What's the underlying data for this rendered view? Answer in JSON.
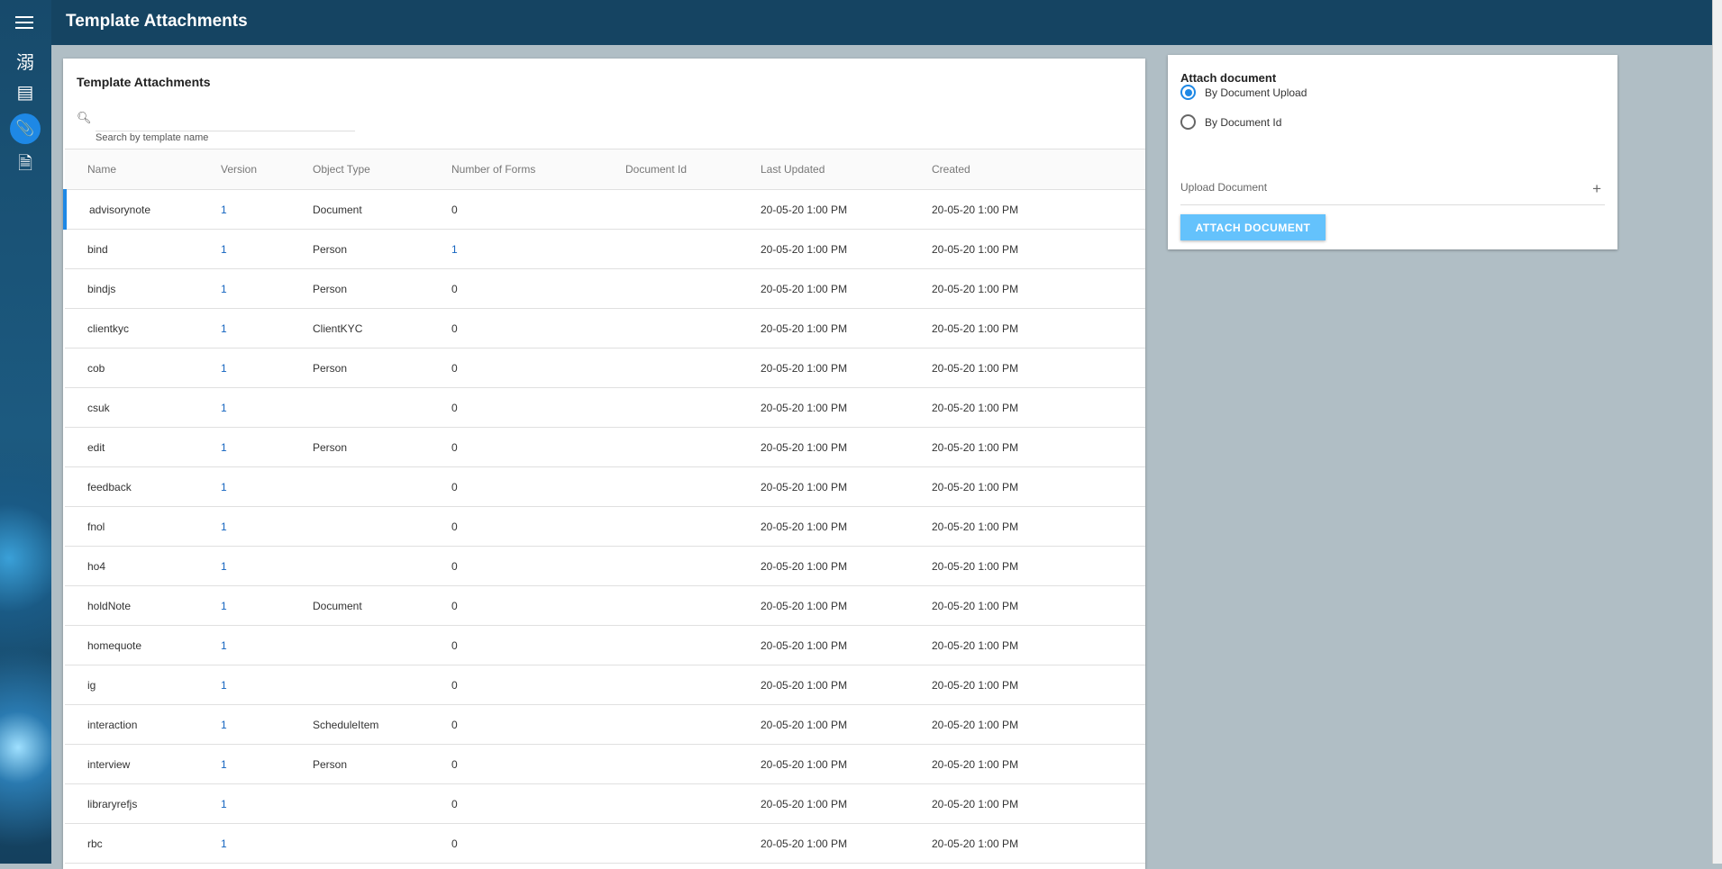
{
  "header": {
    "title": "Template Attachments"
  },
  "sidebar": {
    "items": [
      {
        "icon": "kanji-icon",
        "glyph": "溺"
      },
      {
        "icon": "library-books-icon",
        "glyph": "▤"
      },
      {
        "icon": "paperclip-icon",
        "glyph": "📎",
        "active": true
      },
      {
        "icon": "document-icon",
        "glyph": "🗎"
      }
    ]
  },
  "main": {
    "title": "Template Attachments",
    "search": {
      "placeholder": "Search by template name",
      "value": ""
    },
    "columns": [
      "Name",
      "Version",
      "Object Type",
      "Number of Forms",
      "Document Id",
      "Last Updated",
      "Created"
    ],
    "rows": [
      [
        "advisorynote",
        "1",
        "Document",
        "0",
        "",
        "20-05-20 1:00 PM",
        "20-05-20 1:00 PM"
      ],
      [
        "bind",
        "1",
        "Person",
        "1",
        "",
        "20-05-20 1:00 PM",
        "20-05-20 1:00 PM"
      ],
      [
        "bindjs",
        "1",
        "Person",
        "0",
        "",
        "20-05-20 1:00 PM",
        "20-05-20 1:00 PM"
      ],
      [
        "clientkyc",
        "1",
        "ClientKYC",
        "0",
        "",
        "20-05-20 1:00 PM",
        "20-05-20 1:00 PM"
      ],
      [
        "cob",
        "1",
        "Person",
        "0",
        "",
        "20-05-20 1:00 PM",
        "20-05-20 1:00 PM"
      ],
      [
        "csuk",
        "1",
        "",
        "0",
        "",
        "20-05-20 1:00 PM",
        "20-05-20 1:00 PM"
      ],
      [
        "edit",
        "1",
        "Person",
        "0",
        "",
        "20-05-20 1:00 PM",
        "20-05-20 1:00 PM"
      ],
      [
        "feedback",
        "1",
        "",
        "0",
        "",
        "20-05-20 1:00 PM",
        "20-05-20 1:00 PM"
      ],
      [
        "fnol",
        "1",
        "",
        "0",
        "",
        "20-05-20 1:00 PM",
        "20-05-20 1:00 PM"
      ],
      [
        "ho4",
        "1",
        "",
        "0",
        "",
        "20-05-20 1:00 PM",
        "20-05-20 1:00 PM"
      ],
      [
        "holdNote",
        "1",
        "Document",
        "0",
        "",
        "20-05-20 1:00 PM",
        "20-05-20 1:00 PM"
      ],
      [
        "homequote",
        "1",
        "",
        "0",
        "",
        "20-05-20 1:00 PM",
        "20-05-20 1:00 PM"
      ],
      [
        "ig",
        "1",
        "",
        "0",
        "",
        "20-05-20 1:00 PM",
        "20-05-20 1:00 PM"
      ],
      [
        "interaction",
        "1",
        "ScheduleItem",
        "0",
        "",
        "20-05-20 1:00 PM",
        "20-05-20 1:00 PM"
      ],
      [
        "interview",
        "1",
        "Person",
        "0",
        "",
        "20-05-20 1:00 PM",
        "20-05-20 1:00 PM"
      ],
      [
        "libraryrefjs",
        "1",
        "",
        "0",
        "",
        "20-05-20 1:00 PM",
        "20-05-20 1:00 PM"
      ],
      [
        "rbc",
        "1",
        "",
        "0",
        "",
        "20-05-20 1:00 PM",
        "20-05-20 1:00 PM"
      ]
    ]
  },
  "attach": {
    "title": "Attach document",
    "options": [
      "By Document Upload",
      "By Document Id"
    ],
    "selected": 0,
    "upload_label": "Upload Document",
    "button": "ATTACH DOCUMENT"
  },
  "colors": {
    "header": "#154462",
    "accent": "#1e88e5",
    "button": "#64c2fc"
  }
}
